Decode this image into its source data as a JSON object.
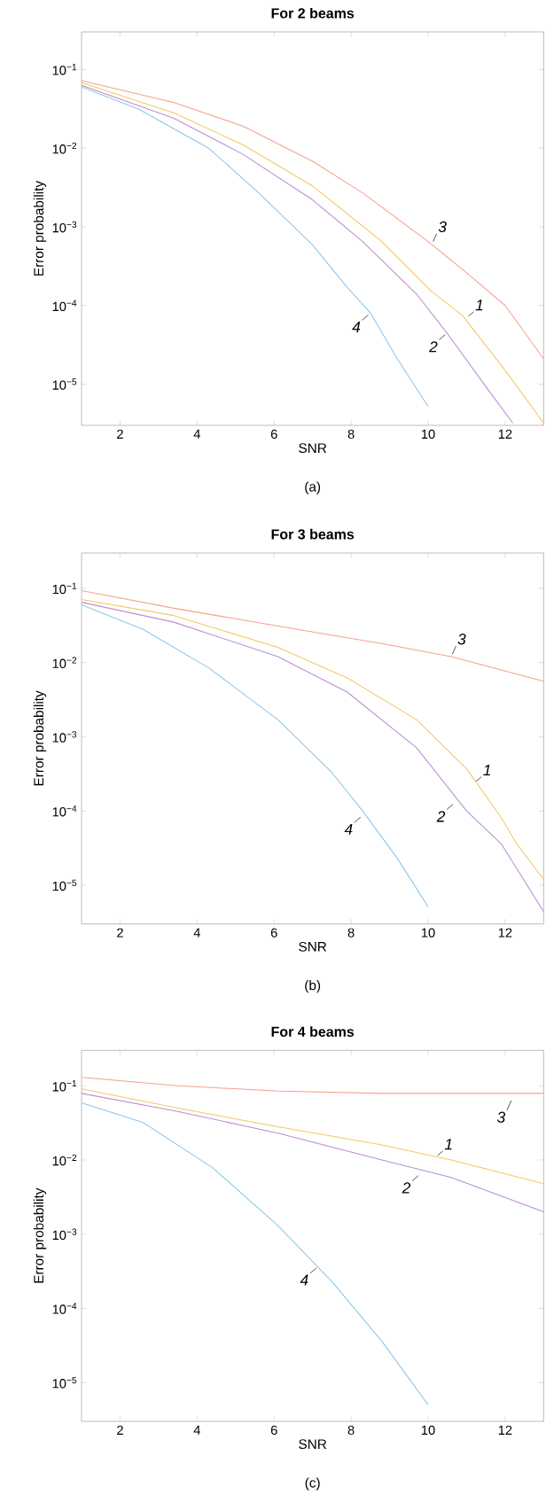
{
  "chart_data": [
    {
      "type": "line",
      "title": "For 2 beams",
      "xlabel": "SNR",
      "ylabel": "Error probability",
      "log": "y",
      "xlim": [
        1,
        13
      ],
      "ylim": [
        3e-06,
        0.3
      ],
      "xticks": [
        2,
        4,
        6,
        8,
        10,
        12
      ],
      "yticks": [
        {
          "value": 0.1,
          "label": "10$^{−1}$"
        },
        {
          "value": 0.01,
          "label": "10$^{−2}$"
        },
        {
          "value": 0.001,
          "label": "10$^{−3}$"
        },
        {
          "value": 0.0001,
          "label": "10$^{−4}$"
        },
        {
          "value": 1e-05,
          "label": "10$^{−5}$"
        }
      ],
      "series": [
        {
          "color": "#f4a38e",
          "x": [
            1,
            3.4,
            5.2,
            7,
            8.3,
            10,
            11,
            12,
            13
          ],
          "values": [
            0.072,
            0.038,
            0.019,
            0.0068,
            0.0027,
            0.00065,
            0.00026,
            0.0001,
            2.1e-05
          ]
        },
        {
          "color": "#f5c862",
          "x": [
            1,
            3.4,
            5.2,
            7,
            8.8,
            10.1,
            10.9,
            12,
            13
          ],
          "values": [
            0.068,
            0.028,
            0.011,
            0.0033,
            0.00065,
            0.00015,
            7.4e-05,
            1.5e-05,
            3.2e-06
          ]
        },
        {
          "color": "#b98fd2",
          "x": [
            1,
            3.4,
            5.2,
            7,
            8.3,
            9.7,
            10.5,
            11.5,
            12.2
          ],
          "values": [
            0.063,
            0.024,
            0.0083,
            0.0022,
            0.00065,
            0.00014,
            4.4e-05,
            9.3e-06,
            3.2e-06
          ]
        },
        {
          "color": "#8ec6ea",
          "x": [
            1,
            2.5,
            4.3,
            5.6,
            7,
            7.9,
            8.5,
            9.2,
            10
          ],
          "values": [
            0.06,
            0.031,
            0.01,
            0.0027,
            0.00059,
            0.00017,
            8.1e-05,
            2.1e-05,
            5.2e-06
          ]
        }
      ],
      "annotations": [
        {
          "text": "3",
          "x": 10.1,
          "y": 0.0006
        },
        {
          "text": "1",
          "x": 11.0,
          "y": 7e-05
        },
        {
          "text": "2",
          "x": 10.5,
          "y": 4.5e-05
        },
        {
          "text": "4",
          "x": 8.5,
          "y": 8e-05
        },
        "(a)"
      ]
    },
    {
      "type": "line",
      "title": "For 3 beams",
      "xlabel": "SNR",
      "ylabel": "Error probability",
      "log": "y",
      "xlim": [
        1,
        13
      ],
      "ylim": [
        3e-06,
        0.3
      ],
      "xticks": [
        2,
        4,
        6,
        8,
        10,
        12
      ],
      "yticks": [
        {
          "value": 0.1,
          "label": "10$^{−1}$"
        },
        {
          "value": 0.01,
          "label": "10$^{−2}$"
        },
        {
          "value": 0.001,
          "label": "10$^{−3}$"
        },
        {
          "value": 0.0001,
          "label": "10$^{−4}$"
        },
        {
          "value": 1e-05,
          "label": "10$^{−5}$"
        }
      ],
      "series": [
        {
          "color": "#f4a38e",
          "x": [
            1,
            3.4,
            6.1,
            8.8,
            10.6,
            13
          ],
          "values": [
            0.093,
            0.054,
            0.031,
            0.018,
            0.012,
            0.0056
          ]
        },
        {
          "color": "#f5c862",
          "x": [
            1,
            3.4,
            6.1,
            7.9,
            9.7,
            11,
            11.9,
            12.3,
            13
          ],
          "values": [
            0.071,
            0.043,
            0.016,
            0.0062,
            0.0017,
            0.00037,
            8.1e-05,
            3.6e-05,
            1.2e-05
          ]
        },
        {
          "color": "#b98fd2",
          "x": [
            1,
            3.4,
            6.1,
            7.9,
            9.7,
            11,
            11.9,
            13
          ],
          "values": [
            0.065,
            0.035,
            0.012,
            0.004,
            0.00071,
            0.0001,
            3.6e-05,
            4.4e-06
          ]
        },
        {
          "color": "#8ec6ea",
          "x": [
            1,
            2.6,
            4.3,
            6.1,
            7.5,
            8.3,
            9.2,
            10
          ],
          "values": [
            0.06,
            0.028,
            0.0085,
            0.0017,
            0.00033,
            0.0001,
            2.3e-05,
            5.1e-06
          ]
        }
      ],
      "annotations": [
        {
          "text": "3",
          "x": 10.6,
          "y": 0.012
        },
        {
          "text": "1",
          "x": 11.2,
          "y": 0.00024
        },
        {
          "text": "2",
          "x": 10.7,
          "y": 0.00013
        },
        {
          "text": "4",
          "x": 8.3,
          "y": 8.7e-05
        },
        "(b)"
      ]
    },
    {
      "type": "line",
      "title": "For 4 beams",
      "xlabel": "SNR",
      "ylabel": "Error probability",
      "log": "y",
      "xlim": [
        1,
        13
      ],
      "ylim": [
        3e-06,
        0.3
      ],
      "xticks": [
        2,
        4,
        6,
        8,
        10,
        12
      ],
      "yticks": [
        {
          "value": 0.1,
          "label": "10$^{−1}$"
        },
        {
          "value": 0.01,
          "label": "10$^{−2}$"
        },
        {
          "value": 0.001,
          "label": "10$^{−3}$"
        },
        {
          "value": 0.0001,
          "label": "10$^{−4}$"
        },
        {
          "value": 1e-05,
          "label": "10$^{−5}$"
        }
      ],
      "series": [
        {
          "color": "#f4a38e",
          "x": [
            1,
            3.5,
            6.1,
            8.8,
            13
          ],
          "values": [
            0.13,
            0.1,
            0.085,
            0.079,
            0.079
          ]
        },
        {
          "color": "#f5c862",
          "x": [
            1,
            3.5,
            6.1,
            8.8,
            10.6,
            13
          ],
          "values": [
            0.091,
            0.05,
            0.028,
            0.016,
            0.01,
            0.0048
          ]
        },
        {
          "color": "#b98fd2",
          "x": [
            1,
            3.5,
            6.1,
            8.8,
            10.6,
            13
          ],
          "values": [
            0.079,
            0.045,
            0.023,
            0.01,
            0.0058,
            0.002
          ]
        },
        {
          "color": "#8ec6ea",
          "x": [
            1,
            2.6,
            4.4,
            6.1,
            7.5,
            8.8,
            10
          ],
          "values": [
            0.059,
            0.032,
            0.0079,
            0.0013,
            0.00023,
            3.6e-05,
            5e-06
          ]
        }
      ],
      "annotations": [
        {
          "text": "3",
          "x": 12.2,
          "y": 0.07
        },
        {
          "text": "1",
          "x": 10.2,
          "y": 0.011
        },
        {
          "text": "2",
          "x": 9.8,
          "y": 0.0065
        },
        {
          "text": "4",
          "x": 7.15,
          "y": 0.00037
        },
        "(c)"
      ]
    }
  ]
}
